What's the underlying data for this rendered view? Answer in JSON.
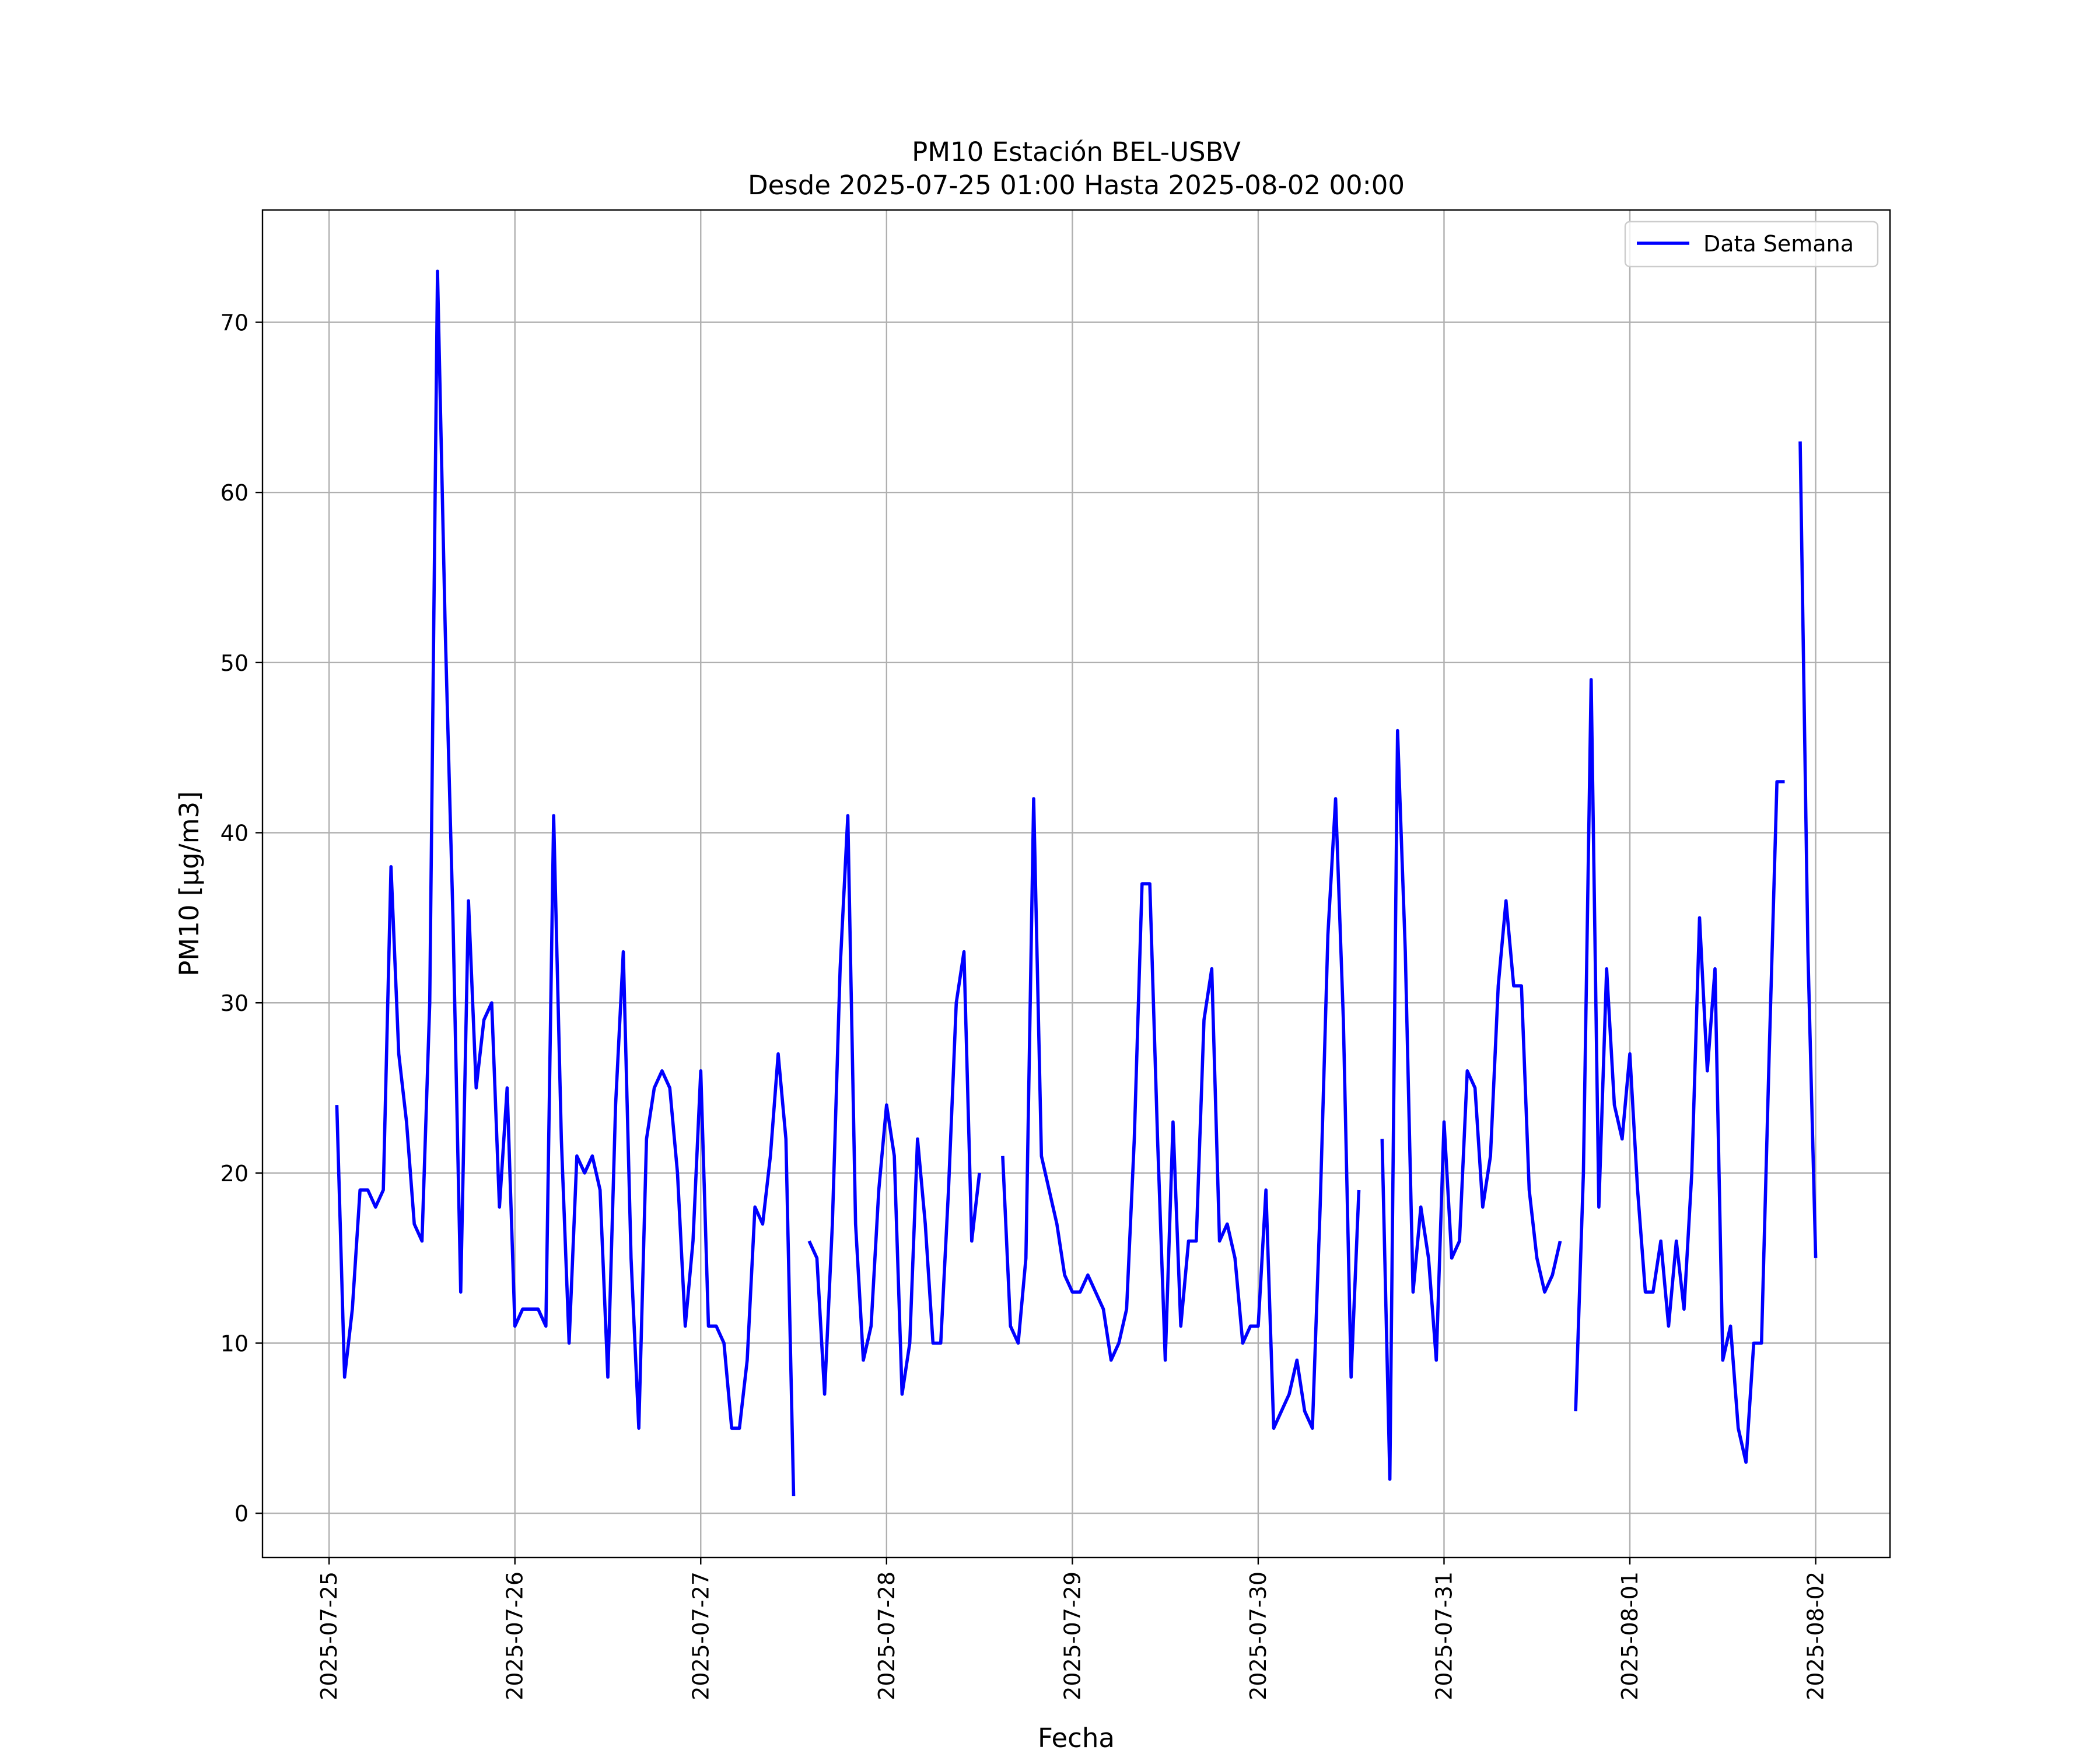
{
  "chart_data": {
    "type": "line",
    "title": "PM10 Estación BEL-USBV",
    "subtitle": "Desde 2025-07-25 01:00 Hasta 2025-08-02 00:00",
    "xlabel": "Fecha",
    "ylabel": "PM10 [μg/m3]",
    "ylim": [
      -2.6,
      76.6
    ],
    "xlim": [
      "2025-07-24 15:24",
      "2025-08-02 09:36"
    ],
    "y_ticks": [
      0,
      10,
      20,
      30,
      40,
      50,
      60,
      70
    ],
    "x_ticks": [
      "2025-07-25",
      "2025-07-26",
      "2025-07-27",
      "2025-07-28",
      "2025-07-29",
      "2025-07-30",
      "2025-07-31",
      "2025-08-01",
      "2025-08-02"
    ],
    "grid": true,
    "legend_position": "top-right",
    "colors": {
      "series": "#0000ff",
      "grid": "#b0b0b0"
    },
    "series": [
      {
        "name": "Data Semana",
        "x": [
          "2025-07-25 01:00",
          "2025-07-25 02:00",
          "2025-07-25 03:00",
          "2025-07-25 04:00",
          "2025-07-25 05:00",
          "2025-07-25 06:00",
          "2025-07-25 07:00",
          "2025-07-25 08:00",
          "2025-07-25 09:00",
          "2025-07-25 10:00",
          "2025-07-25 11:00",
          "2025-07-25 12:00",
          "2025-07-25 13:00",
          "2025-07-25 14:00",
          "2025-07-25 15:00",
          "2025-07-25 16:00",
          "2025-07-25 17:00",
          "2025-07-25 18:00",
          "2025-07-25 19:00",
          "2025-07-25 20:00",
          "2025-07-25 21:00",
          "2025-07-25 22:00",
          "2025-07-25 23:00",
          "2025-07-26 00:00",
          "2025-07-26 01:00",
          "2025-07-26 02:00",
          "2025-07-26 03:00",
          "2025-07-26 04:00",
          "2025-07-26 05:00",
          "2025-07-26 06:00",
          "2025-07-26 07:00",
          "2025-07-26 08:00",
          "2025-07-26 09:00",
          "2025-07-26 10:00",
          "2025-07-26 11:00",
          "2025-07-26 12:00",
          "2025-07-26 13:00",
          "2025-07-26 14:00",
          "2025-07-26 15:00",
          "2025-07-26 16:00",
          "2025-07-26 17:00",
          "2025-07-26 18:00",
          "2025-07-26 19:00",
          "2025-07-26 20:00",
          "2025-07-26 21:00",
          "2025-07-26 22:00",
          "2025-07-26 23:00",
          "2025-07-27 00:00",
          "2025-07-27 01:00",
          "2025-07-27 02:00",
          "2025-07-27 03:00",
          "2025-07-27 04:00",
          "2025-07-27 05:00",
          "2025-07-27 06:00",
          "2025-07-27 07:00",
          "2025-07-27 08:00",
          "2025-07-27 09:00",
          "2025-07-27 10:00",
          "2025-07-27 11:00",
          "2025-07-27 12:00",
          "2025-07-27 13:00",
          "2025-07-27 14:00",
          "2025-07-27 15:00",
          "2025-07-27 16:00",
          "2025-07-27 17:00",
          "2025-07-27 18:00",
          "2025-07-27 19:00",
          "2025-07-27 20:00",
          "2025-07-27 21:00",
          "2025-07-27 22:00",
          "2025-07-27 23:00",
          "2025-07-28 00:00",
          "2025-07-28 01:00",
          "2025-07-28 02:00",
          "2025-07-28 03:00",
          "2025-07-28 04:00",
          "2025-07-28 05:00",
          "2025-07-28 06:00",
          "2025-07-28 07:00",
          "2025-07-28 08:00",
          "2025-07-28 09:00",
          "2025-07-28 10:00",
          "2025-07-28 11:00",
          "2025-07-28 12:00",
          "2025-07-28 13:00",
          "2025-07-28 14:00",
          "2025-07-28 15:00",
          "2025-07-28 16:00",
          "2025-07-28 17:00",
          "2025-07-28 18:00",
          "2025-07-28 19:00",
          "2025-07-28 20:00",
          "2025-07-28 21:00",
          "2025-07-28 22:00",
          "2025-07-28 23:00",
          "2025-07-29 00:00",
          "2025-07-29 01:00",
          "2025-07-29 02:00",
          "2025-07-29 03:00",
          "2025-07-29 04:00",
          "2025-07-29 05:00",
          "2025-07-29 06:00",
          "2025-07-29 07:00",
          "2025-07-29 08:00",
          "2025-07-29 09:00",
          "2025-07-29 10:00",
          "2025-07-29 11:00",
          "2025-07-29 12:00",
          "2025-07-29 13:00",
          "2025-07-29 14:00",
          "2025-07-29 15:00",
          "2025-07-29 16:00",
          "2025-07-29 17:00",
          "2025-07-29 18:00",
          "2025-07-29 19:00",
          "2025-07-29 20:00",
          "2025-07-29 21:00",
          "2025-07-29 22:00",
          "2025-07-29 23:00",
          "2025-07-30 00:00",
          "2025-07-30 01:00",
          "2025-07-30 02:00",
          "2025-07-30 03:00",
          "2025-07-30 04:00",
          "2025-07-30 05:00",
          "2025-07-30 06:00",
          "2025-07-30 07:00",
          "2025-07-30 08:00",
          "2025-07-30 09:00",
          "2025-07-30 10:00",
          "2025-07-30 11:00",
          "2025-07-30 12:00",
          "2025-07-30 13:00",
          "2025-07-30 14:00",
          "2025-07-30 15:00",
          "2025-07-30 16:00",
          "2025-07-30 17:00",
          "2025-07-30 18:00",
          "2025-07-30 19:00",
          "2025-07-30 20:00",
          "2025-07-30 21:00",
          "2025-07-30 22:00",
          "2025-07-30 23:00",
          "2025-07-31 00:00",
          "2025-07-31 01:00",
          "2025-07-31 02:00",
          "2025-07-31 03:00",
          "2025-07-31 04:00",
          "2025-07-31 05:00",
          "2025-07-31 06:00",
          "2025-07-31 07:00",
          "2025-07-31 08:00",
          "2025-07-31 09:00",
          "2025-07-31 10:00",
          "2025-07-31 11:00",
          "2025-07-31 12:00",
          "2025-07-31 13:00",
          "2025-07-31 14:00",
          "2025-07-31 15:00",
          "2025-07-31 16:00",
          "2025-07-31 17:00",
          "2025-07-31 18:00",
          "2025-07-31 19:00",
          "2025-07-31 20:00",
          "2025-07-31 21:00",
          "2025-07-31 22:00",
          "2025-07-31 23:00",
          "2025-08-01 00:00",
          "2025-08-01 01:00",
          "2025-08-01 02:00",
          "2025-08-01 03:00",
          "2025-08-01 04:00",
          "2025-08-01 05:00",
          "2025-08-01 06:00",
          "2025-08-01 07:00",
          "2025-08-01 08:00",
          "2025-08-01 09:00",
          "2025-08-01 10:00",
          "2025-08-01 11:00",
          "2025-08-01 12:00",
          "2025-08-01 13:00",
          "2025-08-01 14:00",
          "2025-08-01 15:00",
          "2025-08-01 16:00",
          "2025-08-01 17:00",
          "2025-08-01 18:00",
          "2025-08-01 19:00",
          "2025-08-01 20:00",
          "2025-08-01 21:00",
          "2025-08-01 22:00",
          "2025-08-01 23:00",
          "2025-08-02 00:00"
        ],
        "values": [
          24,
          8,
          12,
          19,
          19,
          18,
          19,
          38,
          27,
          23,
          17,
          16,
          30,
          73,
          52,
          35,
          13,
          36,
          25,
          29,
          30,
          18,
          25,
          11,
          12,
          12,
          12,
          11,
          41,
          22,
          10,
          21,
          20,
          21,
          19,
          8,
          24,
          33,
          15,
          5,
          22,
          25,
          26,
          25,
          20,
          11,
          16,
          26,
          11,
          11,
          10,
          5,
          5,
          9,
          18,
          17,
          21,
          27,
          22,
          1,
          null,
          16,
          15,
          7,
          17,
          32,
          41,
          17,
          9,
          11,
          19,
          24,
          21,
          7,
          10,
          22,
          17,
          10,
          10,
          19,
          30,
          33,
          16,
          20,
          null,
          null,
          21,
          11,
          10,
          15,
          42,
          21,
          19,
          17,
          14,
          13,
          13,
          14,
          13,
          12,
          9,
          10,
          12,
          22,
          37,
          37,
          22,
          9,
          23,
          11,
          16,
          16,
          29,
          32,
          16,
          17,
          15,
          10,
          11,
          11,
          19,
          5,
          6,
          7,
          9,
          6,
          5,
          18,
          34,
          42,
          29,
          8,
          19,
          null,
          null,
          22,
          2,
          46,
          33,
          13,
          18,
          15,
          9,
          23,
          15,
          16,
          26,
          25,
          18,
          21,
          31,
          36,
          31,
          31,
          19,
          15,
          13,
          14,
          16,
          null,
          6,
          20,
          49,
          18,
          32,
          24,
          22,
          27,
          19,
          13,
          13,
          16,
          11,
          16,
          12,
          20,
          35,
          26,
          32,
          9,
          11,
          5,
          3,
          10,
          10,
          27,
          43,
          43,
          null,
          63,
          33,
          15
        ]
      }
    ]
  }
}
